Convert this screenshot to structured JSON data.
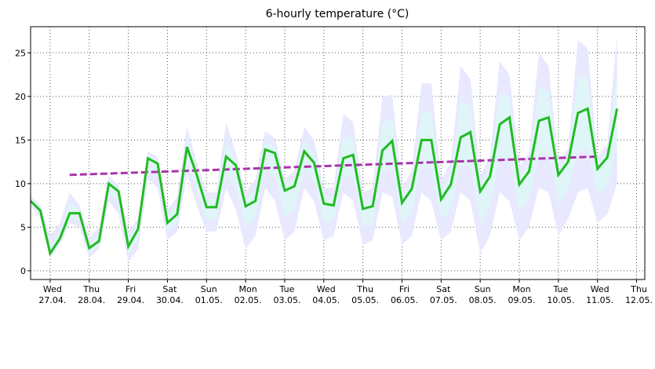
{
  "chart_data": {
    "type": "line",
    "title": "6-hourly temperature (°C)",
    "xlabel": "",
    "ylabel": "",
    "ylim": [
      -1,
      28
    ],
    "yticks": [
      0,
      5,
      10,
      15,
      20,
      25
    ],
    "grid": true,
    "x_step_hours": 6,
    "x_start": "2022-04-26 12:00",
    "days": [
      {
        "day": "Wed",
        "date": "27.04."
      },
      {
        "day": "Thu",
        "date": "28.04."
      },
      {
        "day": "Fri",
        "date": "29.04."
      },
      {
        "day": "Sat",
        "date": "30.04."
      },
      {
        "day": "Sun",
        "date": "01.05."
      },
      {
        "day": "Mon",
        "date": "02.05."
      },
      {
        "day": "Tue",
        "date": "03.05."
      },
      {
        "day": "Wed",
        "date": "04.05."
      },
      {
        "day": "Thu",
        "date": "05.05."
      },
      {
        "day": "Fri",
        "date": "06.05."
      },
      {
        "day": "Sat",
        "date": "07.05."
      },
      {
        "day": "Sun",
        "date": "08.05."
      },
      {
        "day": "Mon",
        "date": "09.05."
      },
      {
        "day": "Tue",
        "date": "10.05."
      },
      {
        "day": "Wed",
        "date": "11.05."
      },
      {
        "day": "Thu",
        "date": "12.05."
      }
    ],
    "series": [
      {
        "color": "#22bb22",
        "values": [
          8.0,
          6.9,
          2.0,
          3.7,
          6.6,
          6.6,
          2.6,
          3.4,
          10.0,
          9.1,
          2.8,
          4.8,
          12.9,
          12.3,
          5.5,
          6.5,
          14.2,
          11.0,
          7.3,
          7.3,
          13.1,
          12.1,
          7.4,
          8.0,
          13.9,
          13.5,
          9.2,
          9.7,
          13.7,
          12.4,
          7.7,
          7.5,
          12.9,
          13.3,
          7.1,
          7.4,
          13.8,
          14.9,
          7.8,
          9.4,
          15.0,
          15.0,
          8.2,
          9.9,
          15.3,
          15.9,
          9.1,
          10.8,
          16.8,
          17.6,
          9.9,
          11.4,
          17.2,
          17.6,
          11.0,
          12.5,
          18.1,
          18.6,
          11.7,
          13.0,
          18.6
        ]
      },
      {
        "color": "#aa33aa",
        "style": "dashed",
        "start_index": 4,
        "end_index": 58,
        "start_value": 11.0,
        "end_value": 13.1
      }
    ],
    "band_outer": {
      "color": "#e8e8ff",
      "upper": [
        8.6,
        7.5,
        4.0,
        5.5,
        9.0,
        7.5,
        3.8,
        5.0,
        10.9,
        9.8,
        4.5,
        6.0,
        13.7,
        13.0,
        7.0,
        8.5,
        16.5,
        12.5,
        9.0,
        9.0,
        17.0,
        13.5,
        9.0,
        10.5,
        16.0,
        15.2,
        10.5,
        11.5,
        16.5,
        15.0,
        9.5,
        9.5,
        18.0,
        17.0,
        9.0,
        9.5,
        20.0,
        20.2,
        9.5,
        11.5,
        21.5,
        21.5,
        10.5,
        12.5,
        23.5,
        22.0,
        11.0,
        13.0,
        24.0,
        22.5,
        12.0,
        13.5,
        25.0,
        23.5,
        12.5,
        14.0,
        26.5,
        25.5,
        13.0,
        14.5,
        27.0
      ],
      "lower": [
        7.5,
        6.0,
        1.5,
        3.0,
        5.5,
        5.0,
        1.5,
        2.5,
        8.0,
        6.5,
        1.0,
        2.5,
        10.5,
        9.5,
        3.5,
        4.5,
        11.0,
        7.5,
        4.5,
        4.5,
        9.5,
        7.0,
        2.5,
        4.0,
        9.5,
        8.0,
        3.5,
        4.5,
        9.5,
        8.0,
        3.5,
        4.0,
        9.0,
        8.0,
        3.0,
        3.5,
        9.0,
        8.5,
        3.0,
        4.0,
        9.0,
        8.0,
        3.5,
        4.5,
        9.0,
        8.0,
        2.0,
        4.0,
        9.0,
        8.0,
        3.5,
        5.0,
        9.5,
        9.0,
        4.0,
        6.0,
        9.0,
        9.5,
        5.5,
        6.5,
        10.0
      ]
    },
    "band_inner": {
      "color": "#dff5f8",
      "upper": [
        8.3,
        7.2,
        2.8,
        4.5,
        7.8,
        7.0,
        3.2,
        4.2,
        10.4,
        9.4,
        3.8,
        5.4,
        13.2,
        12.6,
        6.3,
        7.5,
        15.3,
        11.8,
        8.2,
        8.2,
        15.0,
        12.8,
        8.2,
        9.2,
        14.9,
        14.3,
        9.8,
        10.6,
        15.0,
        13.7,
        8.6,
        8.5,
        15.4,
        15.1,
        8.0,
        8.4,
        16.9,
        17.5,
        8.6,
        10.4,
        18.2,
        18.2,
        9.3,
        11.2,
        19.4,
        18.9,
        10.0,
        11.9,
        20.4,
        20.0,
        10.9,
        12.4,
        21.1,
        20.5,
        11.7,
        13.2,
        22.3,
        22.0,
        12.3,
        13.7,
        22.8
      ],
      "lower": [
        7.7,
        6.4,
        1.7,
        3.3,
        6.0,
        5.8,
        2.0,
        3.0,
        9.0,
        7.8,
        1.9,
        3.6,
        11.7,
        10.9,
        4.5,
        5.5,
        12.6,
        9.2,
        5.9,
        5.9,
        11.3,
        9.5,
        4.9,
        6.0,
        11.7,
        10.7,
        6.3,
        7.1,
        11.6,
        10.2,
        5.6,
        5.7,
        11.0,
        10.6,
        5.0,
        5.4,
        11.4,
        11.7,
        5.4,
        6.7,
        12.0,
        11.5,
        5.8,
        7.2,
        12.1,
        12.0,
        5.5,
        7.4,
        12.9,
        12.8,
        6.7,
        8.2,
        13.3,
        13.3,
        7.5,
        9.2,
        13.5,
        14.0,
        8.6,
        9.7,
        14.3
      ]
    }
  }
}
